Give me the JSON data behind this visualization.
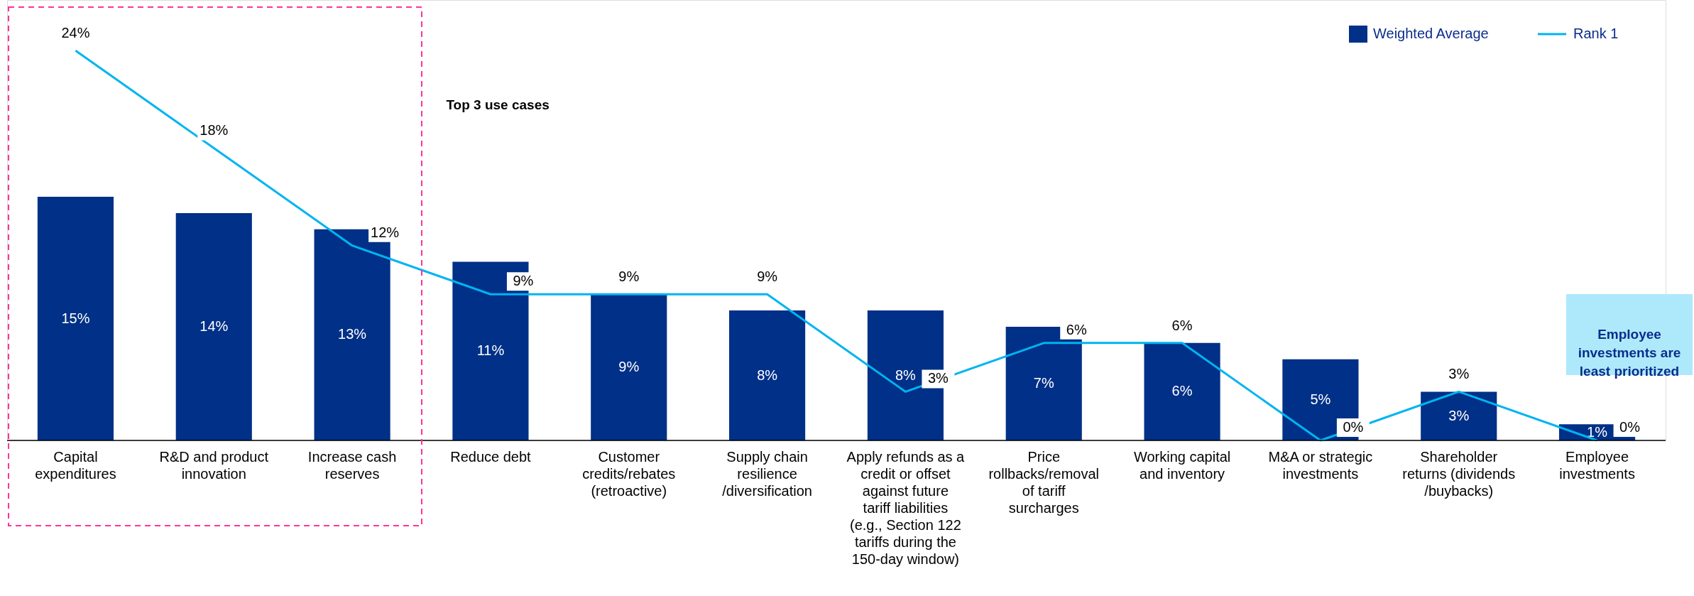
{
  "chart_data": {
    "type": "bar",
    "categories": [
      "Capital expenditures",
      "R&D and product innovation",
      "Increase cash reserves",
      "Reduce debt",
      "Customer credits/rebates (retroactive)",
      "Supply chain resilience /diversification",
      "Apply refunds as a credit or offset against future tariff liabilities (e.g., Section 122 tariffs during the 150-day window)",
      "Price rollbacks/removal of tariff surcharges",
      "Working capital and inventory",
      "M&A or strategic investments",
      "Shareholder returns (dividends /buybacks)",
      "Employee investments"
    ],
    "series": [
      {
        "name": "Weighted Average",
        "color": "#003087",
        "values": [
          15,
          14,
          13,
          11,
          9,
          8,
          8,
          7,
          6,
          5,
          3,
          1
        ],
        "value_labels": [
          "15%",
          "14%",
          "13%",
          "11%",
          "9%",
          "8%",
          "8%",
          "7%",
          "6%",
          "5%",
          "3%",
          "1%"
        ]
      },
      {
        "name": "Rank 1",
        "type": "line",
        "color": "#00b4f0",
        "values": [
          24,
          18,
          12,
          9,
          9,
          9,
          3,
          6,
          6,
          0,
          3,
          0
        ],
        "value_labels": [
          "24%",
          "18%",
          "12%",
          "9%",
          "9%",
          "9%",
          "3%",
          "6%",
          "6%",
          "0%",
          "3%",
          "0%"
        ]
      }
    ],
    "legend": "top right",
    "annotations": [
      "Top 3 use cases",
      "Employee investments are least prioritized"
    ]
  }
}
